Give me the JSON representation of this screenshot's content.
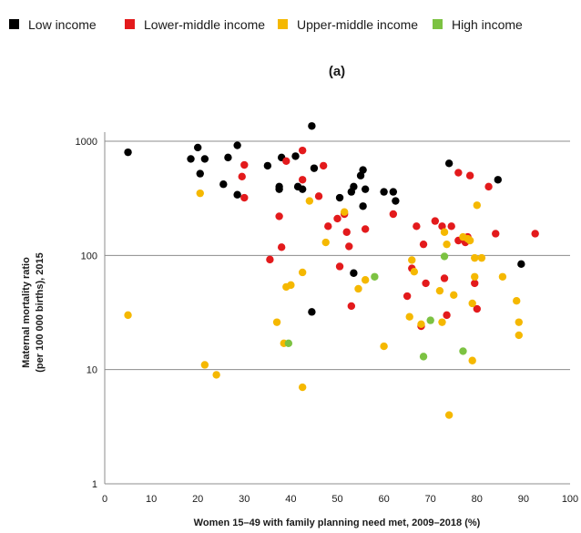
{
  "chart_data": {
    "type": "scatter",
    "panel_label": "(a)",
    "xlabel": "Women 15–49 with family planning need met, 2009–2018 (%)",
    "ylabel_lines": [
      "Maternal mortality ratio",
      "(per 100 000 births), 2015"
    ],
    "xlim": [
      0,
      100
    ],
    "ylim": [
      1,
      1000
    ],
    "y_scale": "log",
    "x_ticks": [
      "0",
      "10",
      "20",
      "30",
      "40",
      "50",
      "60",
      "70",
      "80",
      "90",
      "100"
    ],
    "y_ticks": [
      "1",
      "10",
      "100",
      "1000"
    ],
    "grid": "horizontal",
    "legend_position": "top",
    "series": [
      {
        "name": "Low income",
        "color": "#000000",
        "points": [
          [
            5,
            800
          ],
          [
            18.5,
            700
          ],
          [
            20,
            880
          ],
          [
            20.5,
            520
          ],
          [
            21.5,
            700
          ],
          [
            25.5,
            420
          ],
          [
            26.5,
            720
          ],
          [
            28.5,
            920
          ],
          [
            28.5,
            340
          ],
          [
            35,
            610
          ],
          [
            37.5,
            380
          ],
          [
            37.5,
            400
          ],
          [
            38,
            720
          ],
          [
            41,
            740
          ],
          [
            41.5,
            400
          ],
          [
            42.5,
            380
          ],
          [
            44.5,
            1360
          ],
          [
            45,
            580
          ],
          [
            50.5,
            320
          ],
          [
            53,
            360
          ],
          [
            53.5,
            400
          ],
          [
            55,
            500
          ],
          [
            55.5,
            560
          ],
          [
            55.5,
            270
          ],
          [
            56,
            380
          ],
          [
            60,
            360
          ],
          [
            62,
            360
          ],
          [
            62.5,
            300
          ],
          [
            74,
            640
          ],
          [
            84.5,
            460
          ],
          [
            89.5,
            84
          ],
          [
            44.5,
            32
          ],
          [
            53.5,
            70
          ]
        ]
      },
      {
        "name": "Lower-middle income",
        "color": "#e31a1c",
        "points": [
          [
            29.5,
            490
          ],
          [
            30,
            320
          ],
          [
            30,
            620
          ],
          [
            35.5,
            92
          ],
          [
            37.5,
            220
          ],
          [
            38,
            118
          ],
          [
            39,
            670
          ],
          [
            42.5,
            830
          ],
          [
            42.5,
            460
          ],
          [
            46,
            330
          ],
          [
            47,
            610
          ],
          [
            48,
            180
          ],
          [
            50,
            210
          ],
          [
            50.5,
            80
          ],
          [
            51.5,
            230
          ],
          [
            52,
            160
          ],
          [
            52.5,
            120
          ],
          [
            53,
            36
          ],
          [
            56,
            170
          ],
          [
            62,
            230
          ],
          [
            65,
            44
          ],
          [
            66,
            77
          ],
          [
            67,
            180
          ],
          [
            68,
            24
          ],
          [
            68.5,
            125
          ],
          [
            69,
            57
          ],
          [
            71,
            200
          ],
          [
            72.5,
            180
          ],
          [
            73,
            63
          ],
          [
            73.5,
            30
          ],
          [
            74.5,
            180
          ],
          [
            76,
            530
          ],
          [
            76,
            135
          ],
          [
            77.5,
            130
          ],
          [
            78,
            145
          ],
          [
            78.5,
            500
          ],
          [
            79.5,
            57
          ],
          [
            80,
            34
          ],
          [
            82.5,
            400
          ],
          [
            84,
            155
          ],
          [
            92.5,
            155
          ]
        ]
      },
      {
        "name": "Upper-middle income",
        "color": "#f5b800",
        "points": [
          [
            5,
            30
          ],
          [
            20.5,
            350
          ],
          [
            21.5,
            11
          ],
          [
            24,
            9
          ],
          [
            37,
            26
          ],
          [
            38.5,
            17
          ],
          [
            39,
            53
          ],
          [
            40,
            55
          ],
          [
            42.5,
            71
          ],
          [
            42.5,
            7
          ],
          [
            44,
            300
          ],
          [
            47.5,
            130
          ],
          [
            51.5,
            240
          ],
          [
            54.5,
            51
          ],
          [
            56,
            61
          ],
          [
            60,
            16
          ],
          [
            65.5,
            29
          ],
          [
            66,
            91
          ],
          [
            66.5,
            72
          ],
          [
            68,
            25
          ],
          [
            72,
            49
          ],
          [
            72.5,
            26
          ],
          [
            73,
            160
          ],
          [
            73.5,
            125
          ],
          [
            74,
            4
          ],
          [
            75,
            45
          ],
          [
            77,
            145
          ],
          [
            78,
            140
          ],
          [
            78.5,
            135
          ],
          [
            79,
            12
          ],
          [
            79,
            38
          ],
          [
            80,
            275
          ],
          [
            81,
            95
          ],
          [
            85.5,
            65
          ],
          [
            88.5,
            40
          ],
          [
            89,
            26
          ],
          [
            89,
            20
          ],
          [
            79.5,
            95
          ],
          [
            79.5,
            65
          ]
        ]
      },
      {
        "name": "High income",
        "color": "#7cc242",
        "points": [
          [
            39.5,
            17
          ],
          [
            58,
            65
          ],
          [
            68.5,
            13
          ],
          [
            70,
            27
          ],
          [
            73,
            98
          ],
          [
            77,
            14.5
          ]
        ]
      }
    ]
  }
}
